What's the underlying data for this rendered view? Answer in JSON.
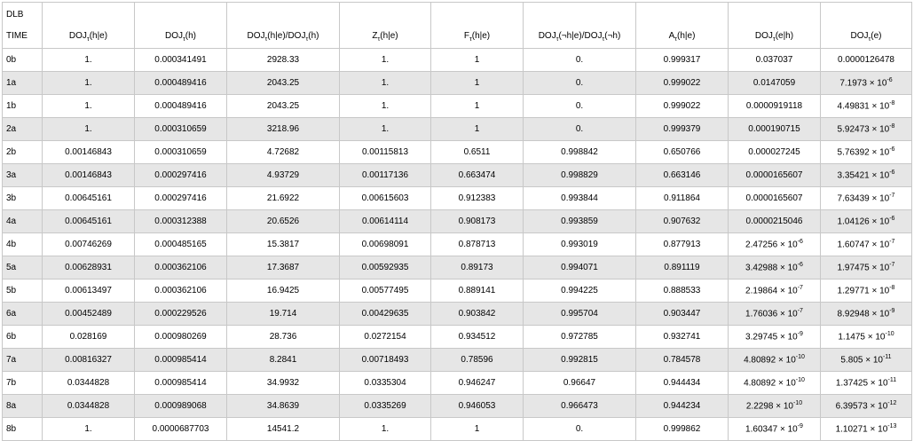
{
  "header": {
    "dlb": "DLB",
    "time": "TIME",
    "columns": [
      "DOJτ(h|e)",
      "DOJτ(h)",
      "DOJτ(h|e)/DOJτ(h)",
      "Zτ(h|e)",
      "Fτ(h|e)",
      "DOJτ(¬h|e)/DOJτ(¬h)",
      "Aτ(h|e)",
      "DOJτ(e|h)",
      "DOJτ(e)"
    ]
  },
  "rows": [
    [
      "0b",
      "1.",
      "0.000341491",
      "2928.33",
      "1.",
      "1",
      "0.",
      "0.999317",
      "0.037037",
      "0.0000126478"
    ],
    [
      "1a",
      "1.",
      "0.000489416",
      "2043.25",
      "1.",
      "1",
      "0.",
      "0.999022",
      "0.0147059",
      "7.1973 × 10^-6"
    ],
    [
      "1b",
      "1.",
      "0.000489416",
      "2043.25",
      "1.",
      "1",
      "0.",
      "0.999022",
      "0.0000919118",
      "4.49831 × 10^-8"
    ],
    [
      "2a",
      "1.",
      "0.000310659",
      "3218.96",
      "1.",
      "1",
      "0.",
      "0.999379",
      "0.000190715",
      "5.92473 × 10^-8"
    ],
    [
      "2b",
      "0.00146843",
      "0.000310659",
      "4.72682",
      "0.00115813",
      "0.6511",
      "0.998842",
      "0.650766",
      "0.000027245",
      "5.76392 × 10^-6"
    ],
    [
      "3a",
      "0.00146843",
      "0.000297416",
      "4.93729",
      "0.00117136",
      "0.663474",
      "0.998829",
      "0.663146",
      "0.0000165607",
      "3.35421 × 10^-6"
    ],
    [
      "3b",
      "0.00645161",
      "0.000297416",
      "21.6922",
      "0.00615603",
      "0.912383",
      "0.993844",
      "0.911864",
      "0.0000165607",
      "7.63439 × 10^-7"
    ],
    [
      "4a",
      "0.00645161",
      "0.000312388",
      "20.6526",
      "0.00614114",
      "0.908173",
      "0.993859",
      "0.907632",
      "0.0000215046",
      "1.04126 × 10^-6"
    ],
    [
      "4b",
      "0.00746269",
      "0.000485165",
      "15.3817",
      "0.00698091",
      "0.878713",
      "0.993019",
      "0.877913",
      "2.47256 × 10^-6",
      "1.60747 × 10^-7"
    ],
    [
      "5a",
      "0.00628931",
      "0.000362106",
      "17.3687",
      "0.00592935",
      "0.89173",
      "0.994071",
      "0.891119",
      "3.42988 × 10^-6",
      "1.97475 × 10^-7"
    ],
    [
      "5b",
      "0.00613497",
      "0.000362106",
      "16.9425",
      "0.00577495",
      "0.889141",
      "0.994225",
      "0.888533",
      "2.19864 × 10^-7",
      "1.29771 × 10^-8"
    ],
    [
      "6a",
      "0.00452489",
      "0.000229526",
      "19.714",
      "0.00429635",
      "0.903842",
      "0.995704",
      "0.903447",
      "1.76036 × 10^-7",
      "8.92948 × 10^-9"
    ],
    [
      "6b",
      "0.028169",
      "0.000980269",
      "28.736",
      "0.0272154",
      "0.934512",
      "0.972785",
      "0.932741",
      "3.29745 × 10^-9",
      "1.1475 × 10^-10"
    ],
    [
      "7a",
      "0.00816327",
      "0.000985414",
      "8.2841",
      "0.00718493",
      "0.78596",
      "0.992815",
      "0.784578",
      "4.80892 × 10^-10",
      "5.805 × 10^-11"
    ],
    [
      "7b",
      "0.0344828",
      "0.000985414",
      "34.9932",
      "0.0335304",
      "0.946247",
      "0.96647",
      "0.944434",
      "4.80892 × 10^-10",
      "1.37425 × 10^-11"
    ],
    [
      "8a",
      "0.0344828",
      "0.000989068",
      "34.8639",
      "0.0335269",
      "0.946053",
      "0.966473",
      "0.944234",
      "2.2298 × 10^-10",
      "6.39573 × 10^-12"
    ],
    [
      "8b",
      "1.",
      "0.0000687703",
      "14541.2",
      "1.",
      "1",
      "0.",
      "0.999862",
      "1.60347 × 10^-9",
      "1.10271 × 10^-13"
    ]
  ]
}
